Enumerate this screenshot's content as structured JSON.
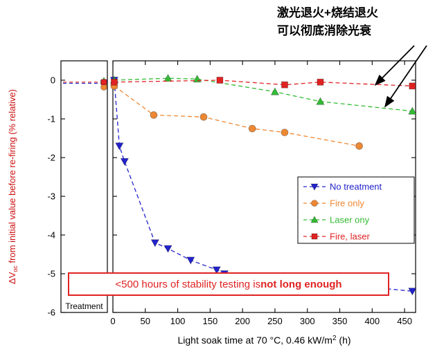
{
  "annotations": {
    "top_right": {
      "line1": "激光退火+烧结退火",
      "line2": "可以彻底消除光衰"
    },
    "warning": {
      "normal": "<500 hours of stability testing is ",
      "bold": "not long enough"
    },
    "treatment_label": "Treatment"
  },
  "chart_data": {
    "type": "scatter",
    "title": "",
    "xlabel": {
      "main": "Light soak time at 70 °C, 0.46 kW/m",
      "sup": "2",
      "tail": " (h)"
    },
    "ylabel": {
      "main": "ΔV",
      "sub": "oc",
      "tail": " from initial value before re-firing (% relative)",
      "color": "#cc1111"
    },
    "xlim": [
      0,
      467
    ],
    "ylim": [
      -6,
      0.5
    ],
    "xticks": [
      0,
      50,
      100,
      150,
      200,
      250,
      300,
      350,
      400,
      450
    ],
    "yticks": [
      0,
      -1,
      -2,
      -3,
      -4,
      -5,
      -6
    ],
    "grid": false,
    "legend_position": "middle-right",
    "series": [
      {
        "name": "No treatment",
        "color": "#2222cc",
        "marker": "triangle-down",
        "x": [
          2,
          10,
          18,
          65,
          85,
          120,
          160,
          172,
          462
        ],
        "y": [
          0,
          -1.7,
          -2.1,
          -4.2,
          -4.35,
          -4.65,
          -4.9,
          -5.0,
          -5.45
        ],
        "treatment_y": -0.08
      },
      {
        "name": "Fire only",
        "color": "#ee8833",
        "marker": "circle",
        "x": [
          2,
          63,
          140,
          215,
          265,
          380
        ],
        "y": [
          -0.15,
          -0.9,
          -0.95,
          -1.25,
          -1.35,
          -1.7
        ],
        "treatment_y": -0.18
      },
      {
        "name": "Laser ony",
        "color": "#33bb33",
        "marker": "triangle-up",
        "x": [
          2,
          85,
          130,
          250,
          320,
          462
        ],
        "y": [
          0,
          0.05,
          0.03,
          -0.3,
          -0.55,
          -0.8
        ],
        "treatment_y": -0.02
      },
      {
        "name": "Fire, laser",
        "color": "#e02222",
        "marker": "square",
        "x": [
          2,
          165,
          265,
          320,
          462
        ],
        "y": [
          -0.05,
          0,
          -0.12,
          -0.05,
          -0.15
        ],
        "treatment_y": -0.05
      }
    ],
    "arrows": [
      {
        "x": 405,
        "y": -0.12
      },
      {
        "x": 420,
        "y": -0.68
      }
    ]
  }
}
